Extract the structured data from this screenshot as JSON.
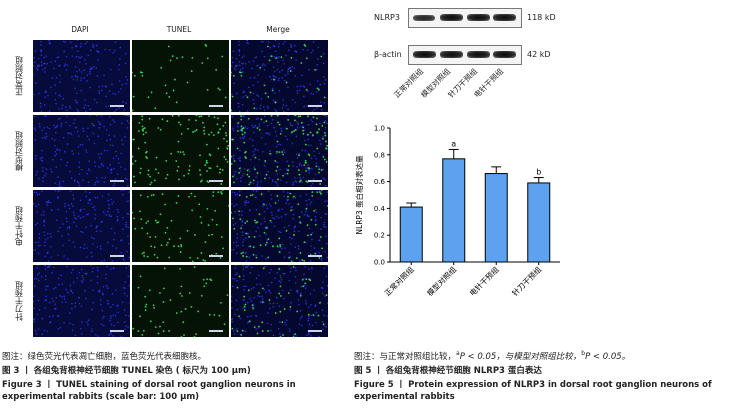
{
  "figure3": {
    "columns": [
      "DAPI",
      "TUNEL",
      "Merge"
    ],
    "rows": [
      "正常对照组",
      "模型对照组",
      "电针干预组",
      "针刀干预组"
    ],
    "caption_note": "图注：绿色荧光代表凋亡细胞，蓝色荧光代表细胞核。",
    "caption_cn": "图 3 丨 各组兔背根神经节细胞 TUNEL 染色 ( 标尺为 100 μm)",
    "caption_en": "Figure 3 丨 TUNEL staining of dorsal root ganglion neurons in experimental rabbits (scale bar: 100 μm)",
    "colors": {
      "dapi": "#2a3cff",
      "tunel": "#3ee85a"
    }
  },
  "figure5": {
    "blot": {
      "proteins": [
        {
          "name": "NLRP3",
          "size": "118 kD"
        },
        {
          "name": "β-actin",
          "size": "42 kD"
        }
      ],
      "lanes": [
        "正常对照组",
        "模型对照组",
        "针刀干预组",
        "电针干预组"
      ]
    },
    "chart_data": {
      "type": "bar",
      "categories": [
        "正常对照组",
        "模型对照组",
        "电针干预组",
        "针刀干预组"
      ],
      "values": [
        0.41,
        0.77,
        0.66,
        0.59
      ],
      "errors": [
        0.03,
        0.07,
        0.05,
        0.04
      ],
      "annotations": [
        "",
        "a",
        "",
        "b"
      ],
      "ylabel": "NLRP3 蛋白相对表达量",
      "ylim": [
        0,
        1.0
      ],
      "yticks": [
        "0.0",
        "0.2",
        "0.4",
        "0.6",
        "0.8",
        "1.0"
      ],
      "bar_color": "#5ca2ef",
      "grid": false
    },
    "caption_note_parts": {
      "prefix": "图注：与正常对照组比较，",
      "a_mark": "a",
      "p1": "P < 0.05，与模型对照组比较，",
      "b_mark": "b",
      "p2": "P < 0.05。"
    },
    "caption_cn": "图 5 丨 各组兔背根神经节细胞 NLRP3 蛋白表达",
    "caption_en": "Figure 5 丨 Protein expression of NLRP3 in dorsal root ganglion neurons of experimental rabbits"
  }
}
